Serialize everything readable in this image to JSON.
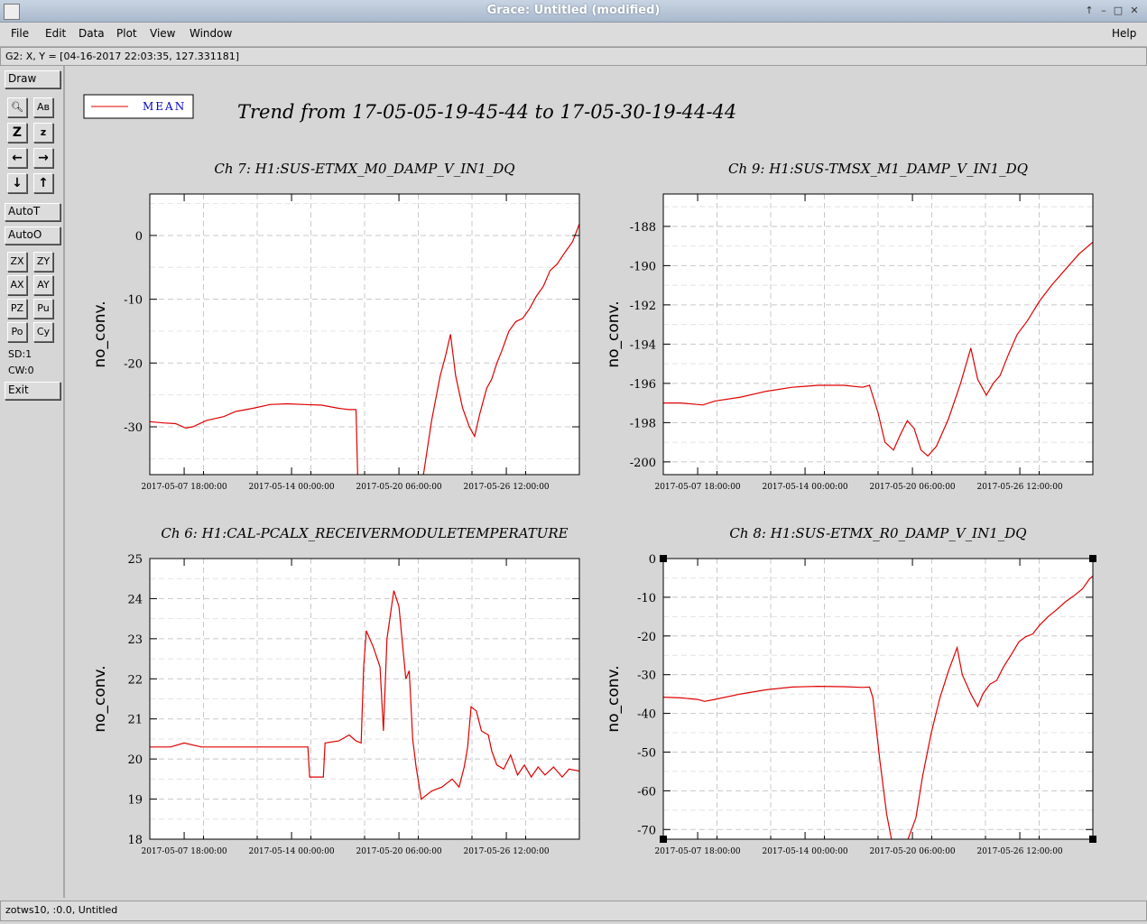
{
  "window": {
    "title": "Grace: Untitled (modified)"
  },
  "menubar": {
    "items": [
      "File",
      "Edit",
      "Data",
      "Plot",
      "View",
      "Window"
    ],
    "help": "Help"
  },
  "locator": {
    "text": "G2: X, Y = [04-16-2017 22:03:35, 127.331181]"
  },
  "toolbar": {
    "draw": "Draw",
    "autot": "AutoT",
    "autoo": "AutoO",
    "exit": "Exit",
    "sd": "SD:1",
    "cw": "CW:0",
    "row_zoom": [
      "ZX",
      "ZY"
    ],
    "row_auto": [
      "AX",
      "AY"
    ],
    "row_p": [
      "PZ",
      "Pu"
    ],
    "row_o": [
      "Po",
      "Cy"
    ]
  },
  "status": {
    "text": "zotws10, :0.0, Untitled"
  },
  "legend": {
    "label": "MEAN"
  },
  "main_title": "Trend from 17-05-05-19-45-44 to 17-05-30-19-44-44",
  "colors": {
    "line": "#e00000",
    "legend_text": "#0000cc",
    "grid": "#c8c8c8"
  },
  "chart_data": [
    {
      "type": "line",
      "title": "Ch 7: H1:SUS-ETMX_M0_DAMP_V_IN1_DQ",
      "ylabel": "no_conv.",
      "ylim": [
        -37.5,
        6.5
      ],
      "xlim": [
        0,
        25
      ],
      "yticks": [
        0,
        -10,
        -20,
        -30
      ],
      "xticks": [
        {
          "x": 2,
          "label": "2017-05-07 18:00:00"
        },
        {
          "x": 8.25,
          "label": "2017-05-14 00:00:00"
        },
        {
          "x": 14.5,
          "label": "2017-05-20 06:00:00"
        },
        {
          "x": 20.75,
          "label": "2017-05-26 12:00:00"
        }
      ],
      "series": [
        {
          "values": [
            [
              0,
              -29.2
            ],
            [
              0.8,
              -29.4
            ],
            [
              1.5,
              -29.5
            ],
            [
              2.1,
              -30.2
            ],
            [
              2.5,
              -30.0
            ],
            [
              3.3,
              -29.0
            ],
            [
              4.3,
              -28.4
            ],
            [
              5.0,
              -27.6
            ],
            [
              6.0,
              -27.1
            ],
            [
              7.0,
              -26.5
            ],
            [
              8.0,
              -26.4
            ],
            [
              9.0,
              -26.5
            ],
            [
              10.0,
              -26.6
            ],
            [
              11.0,
              -27.1
            ],
            [
              11.6,
              -27.3
            ],
            [
              12.0,
              -27.3
            ],
            [
              12.1,
              -38
            ],
            [
              15.9,
              -38
            ],
            [
              16.4,
              -29
            ],
            [
              16.9,
              -22
            ],
            [
              17.2,
              -19
            ],
            [
              17.5,
              -15.5
            ],
            [
              17.8,
              -22
            ],
            [
              18.2,
              -27
            ],
            [
              18.6,
              -30
            ],
            [
              18.9,
              -31.5
            ],
            [
              19.2,
              -28
            ],
            [
              19.6,
              -24
            ],
            [
              19.9,
              -22.5
            ],
            [
              20.2,
              -20
            ],
            [
              20.5,
              -18
            ],
            [
              20.9,
              -15
            ],
            [
              21.3,
              -13.5
            ],
            [
              21.7,
              -13
            ],
            [
              22.1,
              -11.5
            ],
            [
              22.5,
              -9.5
            ],
            [
              22.9,
              -8
            ],
            [
              23.3,
              -5.5
            ],
            [
              23.7,
              -4.5
            ],
            [
              24.2,
              -2.5
            ],
            [
              24.6,
              -1
            ],
            [
              25,
              1.8
            ]
          ]
        }
      ]
    },
    {
      "type": "line",
      "title": "Ch 9: H1:SUS-TMSX_M1_DAMP_V_IN1_DQ",
      "ylabel": "no_conv.",
      "ylim": [
        -200.65,
        -186.35
      ],
      "xlim": [
        0,
        25
      ],
      "yticks": [
        -188,
        -190,
        -192,
        -194,
        -196,
        -198,
        -200
      ],
      "xticks": [
        {
          "x": 2,
          "label": "2017-05-07 18:00:00"
        },
        {
          "x": 8.25,
          "label": "2017-05-14 00:00:00"
        },
        {
          "x": 14.5,
          "label": "2017-05-20 06:00:00"
        },
        {
          "x": 20.75,
          "label": "2017-05-26 12:00:00"
        }
      ],
      "series": [
        {
          "values": [
            [
              0,
              -197.0
            ],
            [
              1.0,
              -197.0
            ],
            [
              2.3,
              -197.1
            ],
            [
              3.0,
              -196.9
            ],
            [
              4.5,
              -196.7
            ],
            [
              6.0,
              -196.4
            ],
            [
              7.5,
              -196.2
            ],
            [
              9.0,
              -196.1
            ],
            [
              10.5,
              -196.1
            ],
            [
              11.6,
              -196.2
            ],
            [
              12.0,
              -196.1
            ],
            [
              12.5,
              -197.5
            ],
            [
              12.9,
              -199.0
            ],
            [
              13.4,
              -199.4
            ],
            [
              13.8,
              -198.6
            ],
            [
              14.2,
              -197.9
            ],
            [
              14.6,
              -198.3
            ],
            [
              15.0,
              -199.4
            ],
            [
              15.4,
              -199.7
            ],
            [
              15.9,
              -199.2
            ],
            [
              16.6,
              -197.8
            ],
            [
              17.3,
              -196.0
            ],
            [
              17.9,
              -194.2
            ],
            [
              18.3,
              -195.8
            ],
            [
              18.8,
              -196.6
            ],
            [
              19.2,
              -196.0
            ],
            [
              19.6,
              -195.6
            ],
            [
              20.1,
              -194.5
            ],
            [
              20.6,
              -193.5
            ],
            [
              21.2,
              -192.8
            ],
            [
              21.9,
              -191.8
            ],
            [
              22.6,
              -191.0
            ],
            [
              23.4,
              -190.2
            ],
            [
              24.2,
              -189.4
            ],
            [
              25,
              -188.8
            ]
          ]
        }
      ]
    },
    {
      "type": "line",
      "title": "Ch 6: H1:CAL-PCALX_RECEIVERMODULETEMPERATURE",
      "ylabel": "no_conv.",
      "ylim": [
        18,
        25
      ],
      "xlim": [
        0,
        25
      ],
      "yticks": [
        25,
        24,
        23,
        22,
        21,
        20,
        19,
        18
      ],
      "xticks": [
        {
          "x": 2,
          "label": "2017-05-07 18:00:00"
        },
        {
          "x": 8.25,
          "label": "2017-05-14 00:00:00"
        },
        {
          "x": 14.5,
          "label": "2017-05-20 06:00:00"
        },
        {
          "x": 20.75,
          "label": "2017-05-26 12:00:00"
        }
      ],
      "series": [
        {
          "values": [
            [
              0,
              20.3
            ],
            [
              1.2,
              20.3
            ],
            [
              2.0,
              20.4
            ],
            [
              3.0,
              20.3
            ],
            [
              4.5,
              20.3
            ],
            [
              6.0,
              20.3
            ],
            [
              7.5,
              20.3
            ],
            [
              8.5,
              20.3
            ],
            [
              9.2,
              20.3
            ],
            [
              9.3,
              19.55
            ],
            [
              10.1,
              19.55
            ],
            [
              10.2,
              20.4
            ],
            [
              11.0,
              20.45
            ],
            [
              11.6,
              20.6
            ],
            [
              12.0,
              20.45
            ],
            [
              12.3,
              20.4
            ],
            [
              12.45,
              22.3
            ],
            [
              12.6,
              23.2
            ],
            [
              13.0,
              22.8
            ],
            [
              13.4,
              22.3
            ],
            [
              13.6,
              20.7
            ],
            [
              13.8,
              23.0
            ],
            [
              14.2,
              24.2
            ],
            [
              14.5,
              23.8
            ],
            [
              14.9,
              22.0
            ],
            [
              15.1,
              22.2
            ],
            [
              15.3,
              20.5
            ],
            [
              15.5,
              19.8
            ],
            [
              15.8,
              19.0
            ],
            [
              16.4,
              19.2
            ],
            [
              17.0,
              19.3
            ],
            [
              17.6,
              19.5
            ],
            [
              18.0,
              19.3
            ],
            [
              18.3,
              19.8
            ],
            [
              18.5,
              20.3
            ],
            [
              18.7,
              21.3
            ],
            [
              19.0,
              21.2
            ],
            [
              19.3,
              20.7
            ],
            [
              19.7,
              20.6
            ],
            [
              19.9,
              20.2
            ],
            [
              20.2,
              19.85
            ],
            [
              20.6,
              19.75
            ],
            [
              21.0,
              20.1
            ],
            [
              21.4,
              19.6
            ],
            [
              21.8,
              19.85
            ],
            [
              22.2,
              19.55
            ],
            [
              22.6,
              19.8
            ],
            [
              23.0,
              19.6
            ],
            [
              23.5,
              19.8
            ],
            [
              24.0,
              19.55
            ],
            [
              24.4,
              19.75
            ],
            [
              25,
              19.7
            ]
          ]
        }
      ]
    },
    {
      "type": "line",
      "title": "Ch 8: H1:SUS-ETMX_R0_DAMP_V_IN1_DQ",
      "ylabel": "no_conv.",
      "ylim": [
        -72.5,
        0
      ],
      "xlim": [
        0,
        25
      ],
      "yticks": [
        0,
        -10,
        -20,
        -30,
        -40,
        -50,
        -60,
        -70
      ],
      "xticks": [
        {
          "x": 2,
          "label": "2017-05-07 18:00:00"
        },
        {
          "x": 8.25,
          "label": "2017-05-14 00:00:00"
        },
        {
          "x": 14.5,
          "label": "2017-05-20 06:00:00"
        },
        {
          "x": 20.75,
          "label": "2017-05-26 12:00:00"
        }
      ],
      "series": [
        {
          "values": [
            [
              0,
              -35.8
            ],
            [
              1.0,
              -36.0
            ],
            [
              2.0,
              -36.4
            ],
            [
              2.4,
              -36.9
            ],
            [
              3.0,
              -36.4
            ],
            [
              4.5,
              -35.0
            ],
            [
              6.0,
              -33.9
            ],
            [
              7.5,
              -33.2
            ],
            [
              9.0,
              -33.0
            ],
            [
              10.5,
              -33.1
            ],
            [
              11.6,
              -33.3
            ],
            [
              12.0,
              -33.2
            ],
            [
              12.2,
              -36
            ],
            [
              12.6,
              -52
            ],
            [
              13.0,
              -66
            ],
            [
              13.3,
              -73
            ],
            [
              14.2,
              -73
            ],
            [
              14.7,
              -67
            ],
            [
              15.1,
              -56
            ],
            [
              15.6,
              -45
            ],
            [
              16.1,
              -36
            ],
            [
              16.6,
              -29
            ],
            [
              17.1,
              -23
            ],
            [
              17.4,
              -30
            ],
            [
              17.9,
              -35
            ],
            [
              18.3,
              -38.2
            ],
            [
              18.6,
              -35
            ],
            [
              19.0,
              -32.5
            ],
            [
              19.4,
              -31.5
            ],
            [
              19.8,
              -28
            ],
            [
              20.3,
              -24.5
            ],
            [
              20.7,
              -21.5
            ],
            [
              21.1,
              -20.2
            ],
            [
              21.5,
              -19.5
            ],
            [
              21.9,
              -17.2
            ],
            [
              22.4,
              -15
            ],
            [
              22.9,
              -13.2
            ],
            [
              23.4,
              -11.2
            ],
            [
              23.9,
              -9.6
            ],
            [
              24.4,
              -7.8
            ],
            [
              24.8,
              -5.3
            ],
            [
              25,
              -4.5
            ]
          ]
        }
      ]
    }
  ]
}
